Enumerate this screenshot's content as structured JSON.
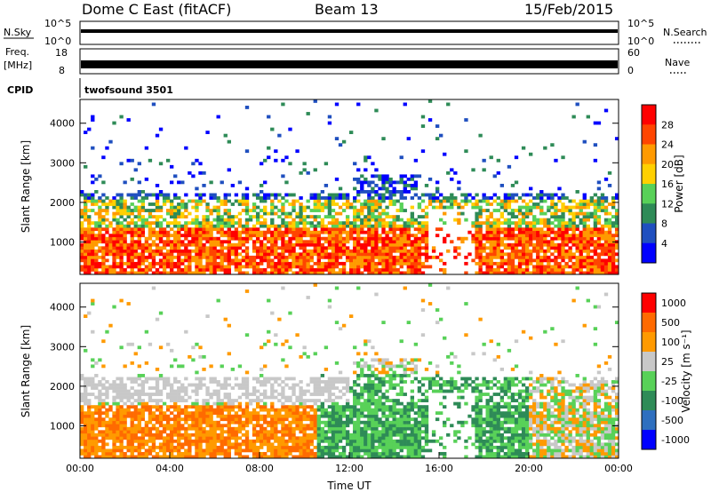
{
  "header": {
    "title": "Dome C East (fitACF)",
    "beam": "Beam 13",
    "date": "15/Feb/2015"
  },
  "top_strip": {
    "nsky_label": "N.Sky",
    "nsearch_label": "N.Search",
    "left_ticks": [
      "10^5",
      "10^0"
    ],
    "right_ticks": [
      "10^5",
      "10^0"
    ]
  },
  "freq_strip": {
    "freq_label": "Freq.",
    "freq_unit": "[MHz]",
    "nave_label": "Nave",
    "left_ticks": [
      "18",
      "8"
    ],
    "right_ticks": [
      "60",
      "0"
    ]
  },
  "cpid": {
    "label": "CPID",
    "value": "twofsound 3501"
  },
  "colors": {
    "power": [
      "#0000ff",
      "#1f4fbf",
      "#2e8b57",
      "#58d158",
      "#ffd000",
      "#ff9a00",
      "#ff4500",
      "#ff0000"
    ],
    "velocity": [
      "#0000ff",
      "#2e6fbf",
      "#2e8b57",
      "#58d158",
      "#c8c8c8",
      "#ff9a00",
      "#ff6a00",
      "#ff0000"
    ]
  },
  "chart_data": [
    {
      "type": "heatmap",
      "ylabel": "Slant Range [km]",
      "ylim": [
        180,
        4600
      ],
      "yticks": [
        1000,
        2000,
        3000,
        4000
      ],
      "colorbar": {
        "label": "Power [dB]",
        "range": [
          0,
          32
        ],
        "ticks": [
          "28",
          "24",
          "20",
          "16",
          "12",
          "8",
          "4"
        ]
      }
    },
    {
      "type": "heatmap",
      "xlabel": "Time UT",
      "ylabel": "Slant Range [km]",
      "ylim": [
        180,
        4600
      ],
      "yticks": [
        1000,
        2000,
        3000,
        4000
      ],
      "xticks": [
        "00:00",
        "04:00",
        "08:00",
        "12:00",
        "16:00",
        "20:00",
        "00:00"
      ],
      "xlim": [
        0,
        24
      ],
      "colorbar": {
        "label": "Velocity [m s⁻¹]",
        "ticks": [
          "1000",
          "500",
          "100",
          "25",
          "-25",
          "-100",
          "-500",
          "-1000"
        ]
      }
    }
  ]
}
